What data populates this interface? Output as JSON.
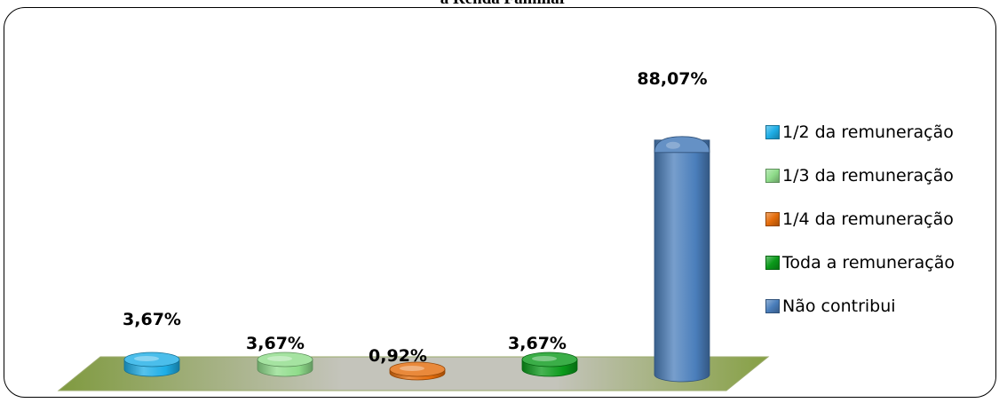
{
  "chart_data": {
    "type": "bar",
    "title": "a Renda Familiar",
    "categories": [
      "1/2 da remuneração",
      "1/3 da remuneração",
      "1/4 da remuneração",
      "Toda a  remuneração",
      "Não contribui"
    ],
    "values": [
      3.67,
      3.67,
      0.92,
      3.67,
      88.07
    ],
    "data_labels": [
      "3,67%",
      "3,67%",
      "0,92%",
      "3,67%",
      "88,07%"
    ],
    "colors": [
      "#1eaee6",
      "#8fdc8a",
      "#e46c0a",
      "#0a9a1a",
      "#4a7ebb"
    ],
    "ylim": [
      0,
      100
    ],
    "grid": false,
    "legend_position": "right"
  },
  "legend": {
    "items": [
      {
        "label": "1/2 da remuneração",
        "color": "#1eaee6"
      },
      {
        "label": "1/3 da remuneração",
        "color": "#8fdc8a"
      },
      {
        "label": "1/4 da remuneração",
        "color": "#e46c0a"
      },
      {
        "label": "Toda a  remuneração",
        "color": "#0a9a1a"
      },
      {
        "label": "Não contribui",
        "color": "#4a7ebb"
      }
    ]
  }
}
